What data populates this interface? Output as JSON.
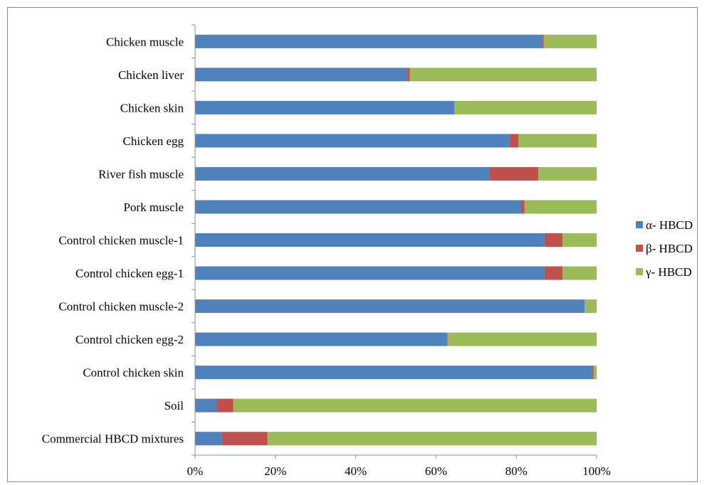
{
  "chart_data": {
    "type": "bar",
    "orientation": "horizontal",
    "stacked": true,
    "percent_stacked": true,
    "categories": [
      "Chicken muscle",
      "Chicken liver",
      "Chicken skin",
      "Chicken egg",
      "River fish muscle",
      "Pork muscle",
      "Control chicken muscle-1",
      "Control chicken egg-1",
      "Control chicken muscle-2",
      "Control chicken egg-2",
      "Control chicken skin",
      "Soil",
      "Commercial HBCD mixtures"
    ],
    "series": [
      {
        "name": "α- HBCD",
        "color": "#4f81bd",
        "values": [
          86.5,
          52.7,
          64.6,
          78.3,
          73.4,
          81.2,
          87.0,
          87.0,
          97.0,
          62.7,
          98.8,
          5.4,
          6.6
        ]
      },
      {
        "name": "β- HBCD",
        "color": "#c0504d",
        "values": [
          0.3,
          0.8,
          0.0,
          2.2,
          12.1,
          0.8,
          4.5,
          4.5,
          0.0,
          0.2,
          0.4,
          4.1,
          11.4
        ]
      },
      {
        "name": "γ- HBCD",
        "color": "#9bbb59",
        "values": [
          13.2,
          46.5,
          35.4,
          19.5,
          14.5,
          18.0,
          8.5,
          8.5,
          3.0,
          37.1,
          0.8,
          90.5,
          82.0
        ]
      }
    ],
    "xticks": [
      "0%",
      "20%",
      "40%",
      "60%",
      "80%",
      "100%"
    ],
    "xlim": [
      0,
      100
    ],
    "legend": "right",
    "grid": false,
    "title": "",
    "xlabel": "",
    "ylabel": ""
  }
}
